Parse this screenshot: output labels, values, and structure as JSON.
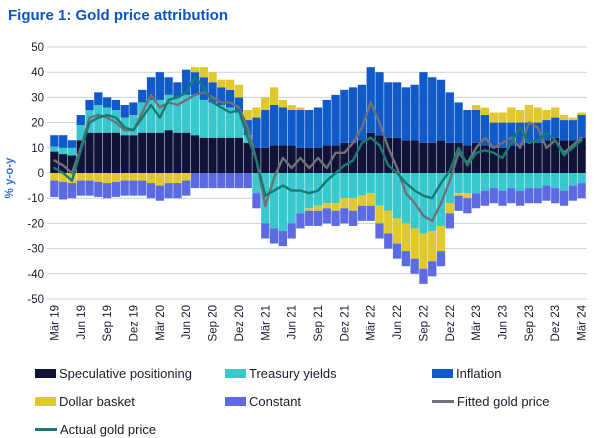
{
  "title": "Figure 1: Gold price attribution",
  "colors": {
    "title": "#0b54c4",
    "grid": "#c7d3db",
    "tick_text": "#1a1a33",
    "y_axis_label": "#3a6fd4",
    "speculative_positioning": "#101238",
    "treasury_yields": "#3ac8cf",
    "inflation": "#1059c8",
    "dollar_basket": "#dfc92e",
    "constant": "#5c6be3",
    "fitted_gold_price": "#6e7276",
    "actual_gold_price": "#177b74"
  },
  "y_axis": {
    "label": "% y-o-y",
    "min": -50,
    "max": 50,
    "ticks": [
      50,
      40,
      30,
      20,
      10,
      0,
      -10,
      -20,
      -30,
      -40,
      -50
    ]
  },
  "x_axis": {
    "tick_labels": [
      "Mär 19",
      "Jun 19",
      "Sep 19",
      "Dez 19",
      "Mär 20",
      "Jun 20",
      "Sep 20",
      "Dez 20",
      "Mär 21",
      "Jun 21",
      "Sep 21",
      "Dez 21",
      "Mär 22",
      "Jun 22",
      "Sep 22",
      "Dez 22",
      "Mär 23",
      "Jun 23",
      "Sep 23",
      "Dez 23",
      "Mär 24"
    ],
    "bars_per_tick": 3
  },
  "legend": {
    "items": [
      {
        "label": "Speculative positioning",
        "type": "bar",
        "color": "#101238"
      },
      {
        "label": "Treasury yields",
        "type": "bar",
        "color": "#3ac8cf"
      },
      {
        "label": "Inflation",
        "type": "bar",
        "color": "#1059c8"
      },
      {
        "label": "Dollar basket",
        "type": "bar",
        "color": "#dfc92e"
      },
      {
        "label": "Constant",
        "type": "bar",
        "color": "#5c6be3"
      },
      {
        "label": "Fitted gold price",
        "type": "line",
        "color": "#6e7276"
      },
      {
        "label": "Actual gold price",
        "type": "line",
        "color": "#177b74"
      }
    ]
  },
  "chart_data": {
    "type": "bar",
    "subtype": "stacked-bar-with-lines",
    "title": "Figure 1: Gold price attribution",
    "xlabel": "",
    "ylabel": "% y-o-y",
    "ylim": [
      -50,
      50
    ],
    "grid": "horizontal",
    "legend_position": "bottom",
    "categories": [
      "Mär 19",
      "Jun 19",
      "Sep 19",
      "Dez 19",
      "Mär 20",
      "Jun 20",
      "Sep 20",
      "Dez 20",
      "Mär 21",
      "Jun 21",
      "Sep 21",
      "Dez 21",
      "Mär 22",
      "Jun 22",
      "Sep 22",
      "Dez 22",
      "Mär 23",
      "Jun 23",
      "Sep 23",
      "Dez 23",
      "Mär 24"
    ],
    "points_per_category": 3,
    "series": [
      {
        "name": "Speculative positioning",
        "type": "bar",
        "color": "#101238",
        "values": [
          8.5,
          7.5,
          7,
          13,
          16,
          16,
          16,
          16,
          15,
          15,
          16,
          16,
          16,
          17,
          16,
          16,
          15,
          14,
          14,
          14,
          14,
          14,
          12,
          10,
          10,
          11,
          11,
          11,
          10,
          10,
          10,
          11,
          11,
          12,
          12,
          13,
          16,
          15,
          14,
          14,
          13,
          13,
          12,
          12,
          13,
          12,
          12,
          11,
          12,
          11,
          10,
          10,
          11,
          11,
          12,
          12,
          13,
          14,
          13,
          13,
          14
        ]
      },
      {
        "name": "Treasury yields",
        "type": "bar",
        "color": "#3ac8cf",
        "values": [
          2,
          2.5,
          3,
          6,
          9,
          11,
          10,
          9,
          7,
          8,
          12,
          13,
          13,
          14,
          14,
          15,
          16,
          15,
          14,
          13,
          12,
          10,
          3,
          -8,
          -20,
          -22,
          -23,
          -20,
          -16,
          -14,
          -13,
          -12,
          -12,
          -10,
          -10,
          -9,
          -8,
          -13,
          -15,
          -18,
          -20,
          -22,
          -24,
          -23,
          -21,
          -12,
          -8,
          -8,
          -8,
          -7,
          -6,
          -7,
          -6,
          -7,
          -6,
          -6,
          -5,
          -6,
          -7,
          -5,
          -4
        ]
      },
      {
        "name": "Inflation",
        "type": "bar",
        "color": "#1059c8",
        "values": [
          4.5,
          5,
          3,
          4,
          4,
          5,
          4,
          4,
          5,
          5,
          5,
          9,
          11,
          7,
          6,
          10,
          9,
          9,
          8,
          7,
          7,
          6,
          6,
          12,
          15,
          16,
          15,
          14,
          15,
          15,
          16,
          18,
          20,
          21,
          22,
          22,
          26,
          25,
          22,
          22,
          21,
          22,
          28,
          26,
          24,
          20,
          16,
          14,
          13,
          12,
          10,
          10,
          9,
          9,
          8,
          8,
          8,
          8,
          8,
          8,
          9
        ]
      },
      {
        "name": "Dollar basket",
        "type": "bar",
        "color": "#dfc92e",
        "values": [
          -3,
          -3.5,
          -4,
          -3,
          -3,
          -3.5,
          -4,
          -3.5,
          -3,
          -3,
          -3,
          -4,
          -5,
          -4,
          -4,
          -3,
          2,
          4,
          4,
          3,
          4,
          5,
          4,
          4,
          5,
          7,
          3,
          2,
          1,
          -1,
          -2,
          -2,
          -3,
          -4,
          -5,
          -4,
          -5,
          -7,
          -9,
          -10,
          -11,
          -12,
          -14,
          -12,
          -10,
          -4,
          -1,
          -2,
          2,
          3,
          4,
          4,
          6,
          5,
          7,
          6,
          4,
          4,
          2,
          1,
          1
        ]
      },
      {
        "name": "Constant",
        "type": "bar",
        "color": "#5c6be3",
        "values": [
          -6.5,
          -7,
          -6,
          -6,
          -6,
          -6,
          -6,
          -6,
          -6,
          -6,
          -6,
          -6,
          -6,
          -6,
          -6,
          -6,
          -6,
          -6,
          -6,
          -6,
          -6,
          -6,
          -6,
          -6,
          -6,
          -6,
          -6,
          -6,
          -6,
          -6,
          -6,
          -6,
          -6,
          -6,
          -6,
          -6,
          -6,
          -6,
          -6,
          -6,
          -6,
          -6,
          -6,
          -6,
          -6,
          -6,
          -6,
          -6,
          -6,
          -6,
          -6,
          -6,
          -6,
          -6,
          -6,
          -6,
          -6,
          -6,
          -6,
          -6,
          -6
        ]
      },
      {
        "name": "Fitted gold price",
        "type": "line",
        "color": "#6e7276",
        "values": [
          5,
          3,
          0,
          10,
          22,
          23,
          22,
          20,
          17,
          17,
          24,
          31,
          26,
          28,
          27,
          29,
          31,
          32,
          30,
          28,
          28,
          26,
          18,
          5,
          -13,
          -2,
          6,
          2,
          6,
          2,
          6,
          2,
          8,
          8,
          12,
          18,
          28,
          20,
          10,
          2,
          -8,
          -12,
          -17,
          -19,
          -12,
          -3,
          8,
          4,
          10,
          14,
          10,
          12,
          14,
          10,
          20,
          18,
          10,
          13,
          8,
          11,
          14
        ]
      },
      {
        "name": "Actual gold price",
        "type": "line",
        "color": "#177b74",
        "values": [
          2,
          0,
          -3,
          9,
          20,
          22,
          23,
          22,
          18,
          17,
          22,
          27,
          22,
          29,
          30,
          32,
          38,
          34,
          28,
          26,
          24,
          25,
          14,
          5,
          -9,
          -7,
          -5,
          -7,
          -7,
          -8,
          -7,
          -3,
          0,
          3,
          5,
          12,
          14,
          11,
          3,
          0,
          -4,
          -7,
          -9,
          -10,
          -4,
          1,
          10,
          3,
          8,
          9,
          8,
          6,
          12,
          18,
          12,
          13,
          16,
          13,
          7,
          10,
          13
        ]
      }
    ]
  }
}
